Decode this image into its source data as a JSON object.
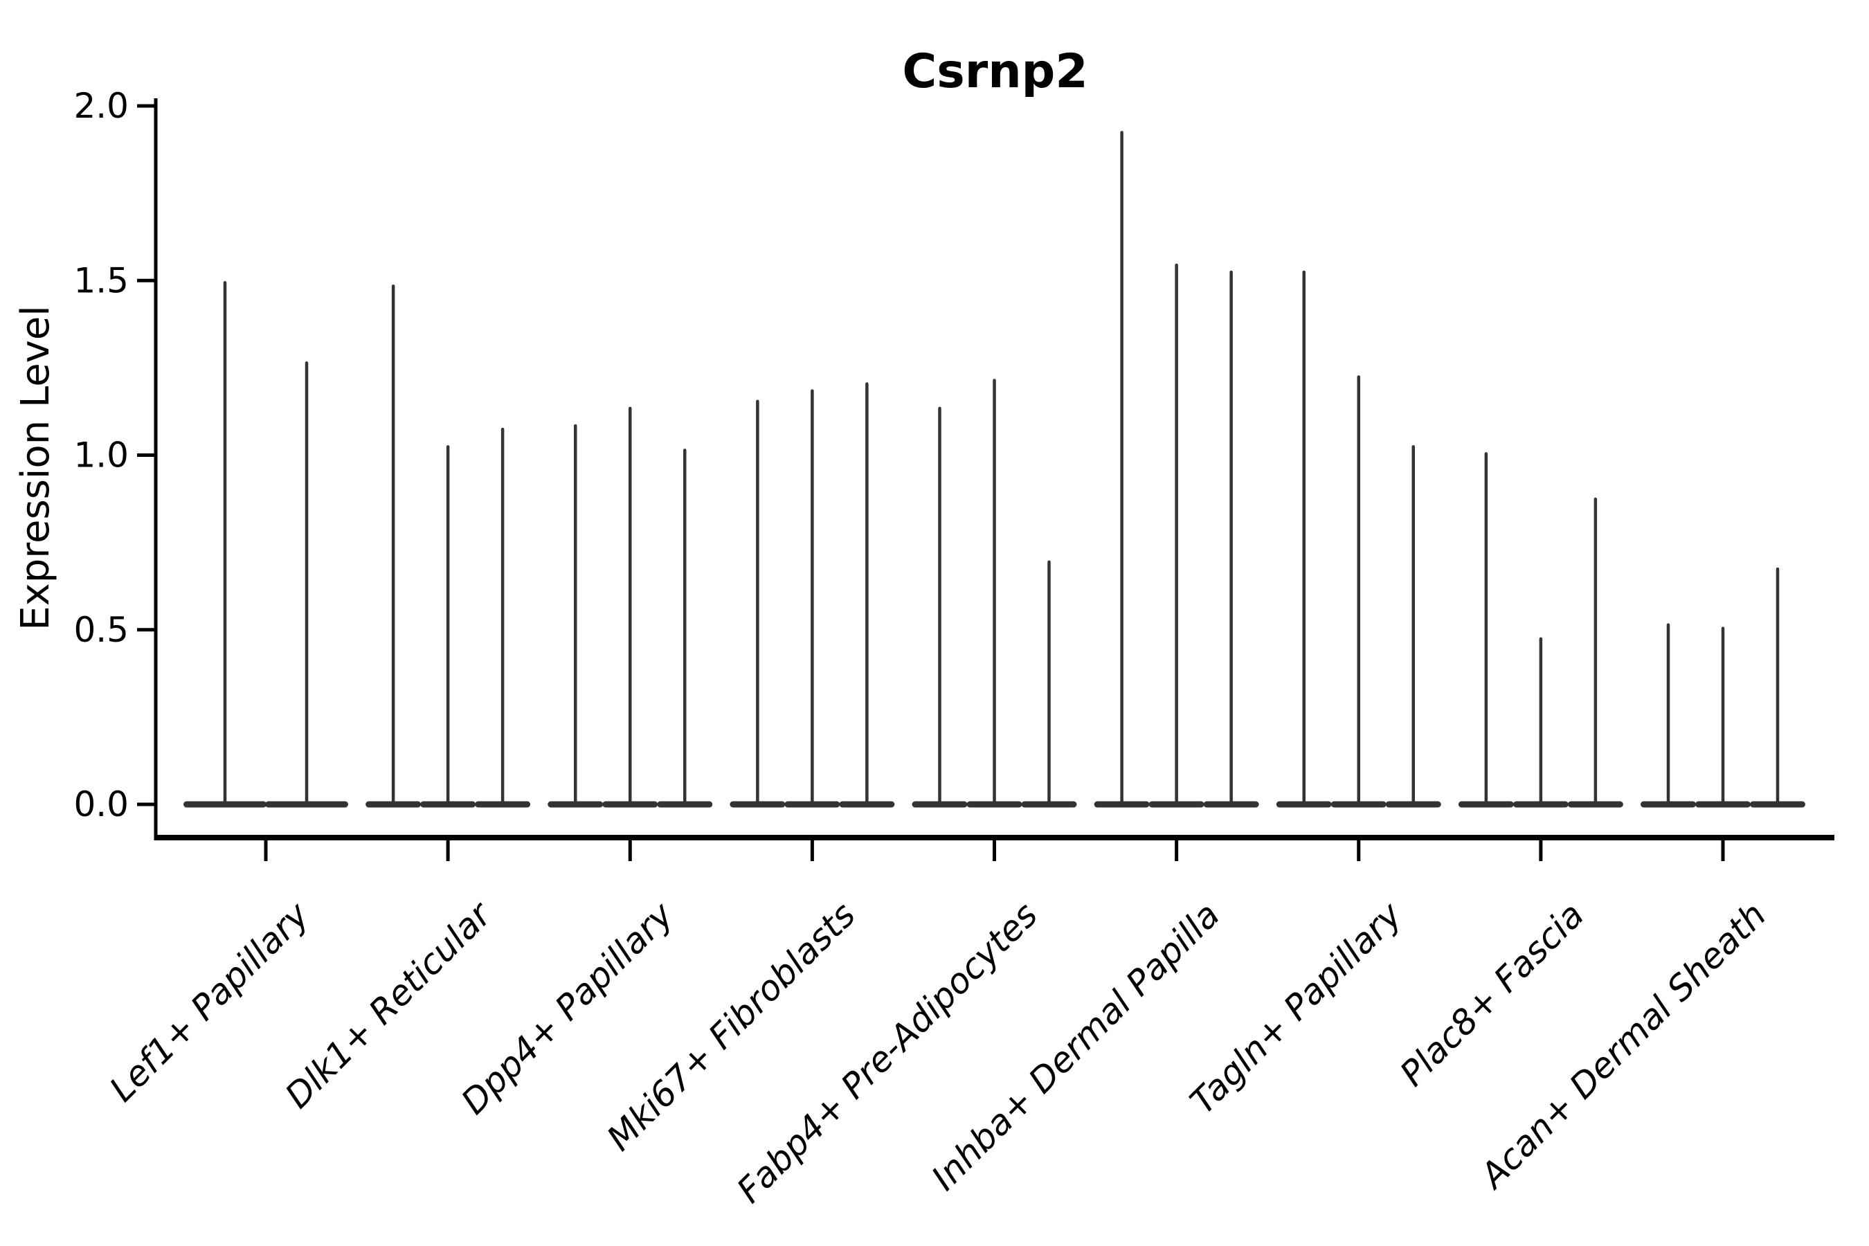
{
  "chart_data": {
    "type": "violin",
    "title": "Csrnp2",
    "ylabel": "Expression Level",
    "ylim": [
      0,
      2.0
    ],
    "yticks": [
      0.0,
      0.5,
      1.0,
      1.5,
      2.0
    ],
    "ytick_labels": [
      "0.0",
      "0.5",
      "1.0",
      "1.5",
      "2.0"
    ],
    "grid": false,
    "legend": "none",
    "categories": [
      "Lef1+ Papillary",
      "Dlk1+ Reticular",
      "Dpp4+ Papillary",
      "Mki67+ Fibroblasts",
      "Fabp4+ Pre-Adipocytes",
      "Inhba+ Dermal Papilla",
      "Tagln+ Papillary",
      "Plac8+ Fascia",
      "Acan+ Dermal Sheath"
    ],
    "groups": [
      {
        "category": "Lef1+ Papillary",
        "violin_max_values": [
          1.5,
          1.27
        ]
      },
      {
        "category": "Dlk1+ Reticular",
        "violin_max_values": [
          1.49,
          1.03,
          1.08
        ]
      },
      {
        "category": "Dpp4+ Papillary",
        "violin_max_values": [
          1.09,
          1.14,
          1.02
        ]
      },
      {
        "category": "Mki67+ Fibroblasts",
        "violin_max_values": [
          1.16,
          1.19,
          1.21
        ]
      },
      {
        "category": "Fabp4+ Pre-Adipocytes",
        "violin_max_values": [
          1.14,
          1.22,
          0.7
        ]
      },
      {
        "category": "Inhba+ Dermal Papilla",
        "violin_max_values": [
          1.93,
          1.55,
          1.53
        ]
      },
      {
        "category": "Tagln+ Papillary",
        "violin_max_values": [
          1.53,
          1.23,
          1.03
        ]
      },
      {
        "category": "Plac8+ Fascia",
        "violin_max_values": [
          1.01,
          0.48,
          0.88
        ]
      },
      {
        "category": "Acan+ Dermal Sheath",
        "violin_max_values": [
          0.52,
          0.51,
          0.68
        ]
      }
    ],
    "violin_color": "#333333",
    "axis_color": "#000000",
    "background_color": "#ffffff"
  }
}
